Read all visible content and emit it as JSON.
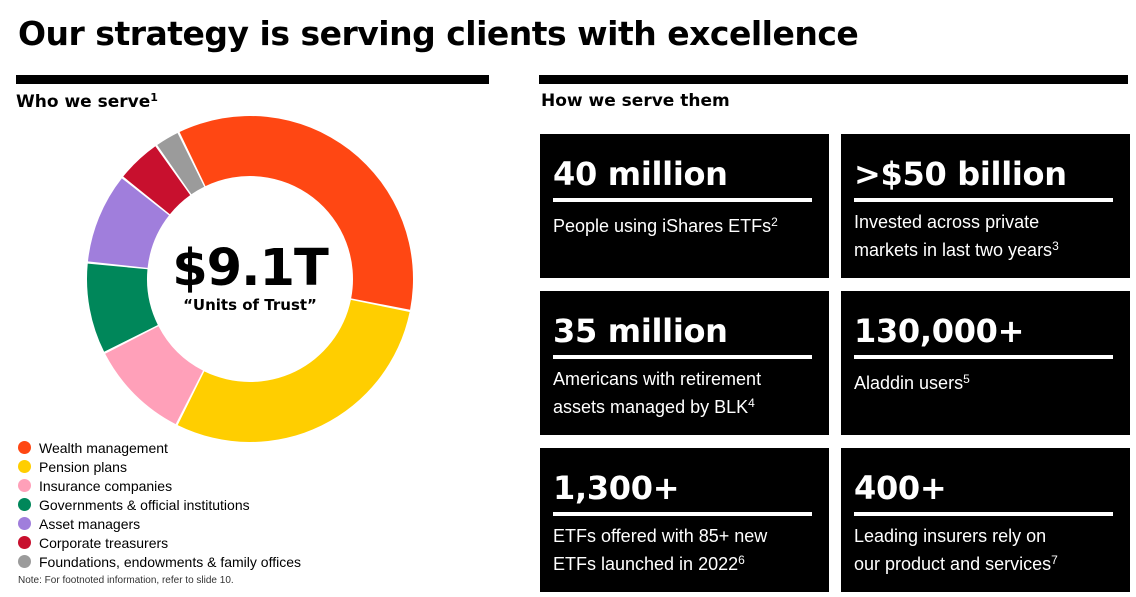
{
  "title": "Our strategy is serving clients with excellence",
  "left_section": {
    "heading": "Who we serve",
    "footnote": "1"
  },
  "right_section": {
    "heading": "How we serve them"
  },
  "chart_data": {
    "type": "pie",
    "style": "donut",
    "center_value": "$9.1T",
    "center_label": "“Units of Trust”",
    "unit": "share of total",
    "legend_position": "bottom-left",
    "slices": [
      {
        "label": "Wealth management",
        "value": 35,
        "color": "#FF4713"
      },
      {
        "label": "Pension plans",
        "value": 29,
        "color": "#FFCE00"
      },
      {
        "label": "Insurance companies",
        "value": 10,
        "color": "#FFA0B9"
      },
      {
        "label": "Governments & official institutions",
        "value": 9,
        "color": "#00875A"
      },
      {
        "label": "Asset managers",
        "value": 9,
        "color": "#A07EDC"
      },
      {
        "label": "Corporate treasurers",
        "value": 4.5,
        "color": "#C8102E"
      },
      {
        "label": "Foundations, endowments & family offices",
        "value": 2.5,
        "color": "#9B9B9B"
      }
    ]
  },
  "note": "Note: For footnoted information, refer to slide 10.",
  "tiles": [
    {
      "value": "40 million",
      "lines": [
        "People using iShares ETFs"
      ],
      "footnote": "2"
    },
    {
      "value": ">$50 billion",
      "lines": [
        "Invested across private",
        "markets in last two years"
      ],
      "footnote": "3"
    },
    {
      "value": "35 million",
      "lines": [
        "Americans with retirement",
        "assets managed by BLK"
      ],
      "footnote": "4"
    },
    {
      "value": "130,000+",
      "lines": [
        "Aladdin users"
      ],
      "footnote": "5"
    },
    {
      "value": "1,300+",
      "lines": [
        "ETFs offered with 85+ new",
        "ETFs launched in 2022"
      ],
      "footnote": "6"
    },
    {
      "value": "400+",
      "lines": [
        "Leading insurers rely on",
        "our product and services"
      ],
      "footnote": "7"
    }
  ]
}
